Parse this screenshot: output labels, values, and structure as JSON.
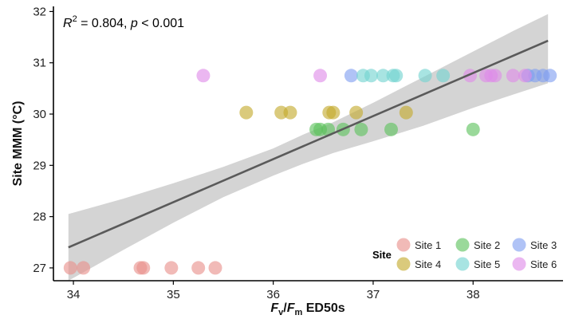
{
  "chart_data": {
    "type": "scatter",
    "xlabel": {
      "main": "F",
      "sub1": "v",
      "slash": "/",
      "main2": "F",
      "sub2": "m",
      "rest": " ED50s"
    },
    "ylabel": "Site MMM (°C)",
    "annotation": {
      "r_label": "R",
      "r_sup": "2",
      "r_value": " = 0.804, ",
      "p_label": "p",
      "p_value": " < 0.001"
    },
    "xlim": [
      33.8,
      38.9
    ],
    "ylim": [
      26.75,
      32.1
    ],
    "x_ticks": [
      34,
      35,
      36,
      37,
      38
    ],
    "y_ticks": [
      27,
      28,
      29,
      30,
      31,
      32
    ],
    "fit": {
      "x": [
        33.95,
        38.75
      ],
      "y": [
        27.4,
        31.43
      ]
    },
    "ci": {
      "x": [
        33.95,
        34.5,
        35.0,
        35.5,
        36.0,
        36.3,
        36.6,
        37.0,
        37.5,
        38.0,
        38.4,
        38.75
      ],
      "upper": [
        28.05,
        28.35,
        28.65,
        28.97,
        29.33,
        29.6,
        29.84,
        30.22,
        30.72,
        31.22,
        31.62,
        31.95
      ],
      "lower": [
        26.75,
        27.35,
        27.88,
        28.38,
        28.8,
        29.03,
        29.24,
        29.47,
        29.77,
        30.12,
        30.38,
        30.6
      ]
    },
    "legend_title": "Site",
    "legend_position": "bottom-right",
    "series": [
      {
        "name": "Site 1",
        "color": "#e8908a",
        "x": [
          33.97,
          34.1,
          34.67,
          34.7,
          34.98,
          35.25,
          35.42
        ],
        "y": [
          27.0,
          27.0,
          27.0,
          27.0,
          27.0,
          27.0,
          27.0
        ]
      },
      {
        "name": "Site 2",
        "color": "#5cc25c",
        "x": [
          36.43,
          36.47,
          36.55,
          36.7,
          36.88,
          37.18,
          38.0
        ],
        "y": [
          29.7,
          29.7,
          29.7,
          29.7,
          29.7,
          29.7,
          29.7
        ]
      },
      {
        "name": "Site 3",
        "color": "#7f9ef0",
        "x": [
          36.78,
          38.55,
          38.62,
          38.7,
          38.77
        ],
        "y": [
          30.75,
          30.75,
          30.75,
          30.75,
          30.75
        ]
      },
      {
        "name": "Site 4",
        "color": "#c3a92b",
        "x": [
          35.73,
          36.08,
          36.17,
          36.56,
          36.6,
          36.83,
          37.33
        ],
        "y": [
          30.03,
          30.03,
          30.03,
          30.03,
          30.03,
          30.03,
          30.03
        ]
      },
      {
        "name": "Site 5",
        "color": "#73d3d0",
        "x": [
          36.9,
          36.98,
          37.1,
          37.2,
          37.23,
          37.52,
          37.7
        ],
        "y": [
          30.75,
          30.75,
          30.75,
          30.75,
          30.75,
          30.75,
          30.75
        ]
      },
      {
        "name": "Site 6",
        "color": "#de8ae8",
        "x": [
          35.3,
          36.47,
          37.97,
          38.13,
          38.18,
          38.22,
          38.4,
          38.52
        ],
        "y": [
          30.75,
          30.75,
          30.75,
          30.75,
          30.75,
          30.75,
          30.75,
          30.75
        ]
      }
    ]
  }
}
